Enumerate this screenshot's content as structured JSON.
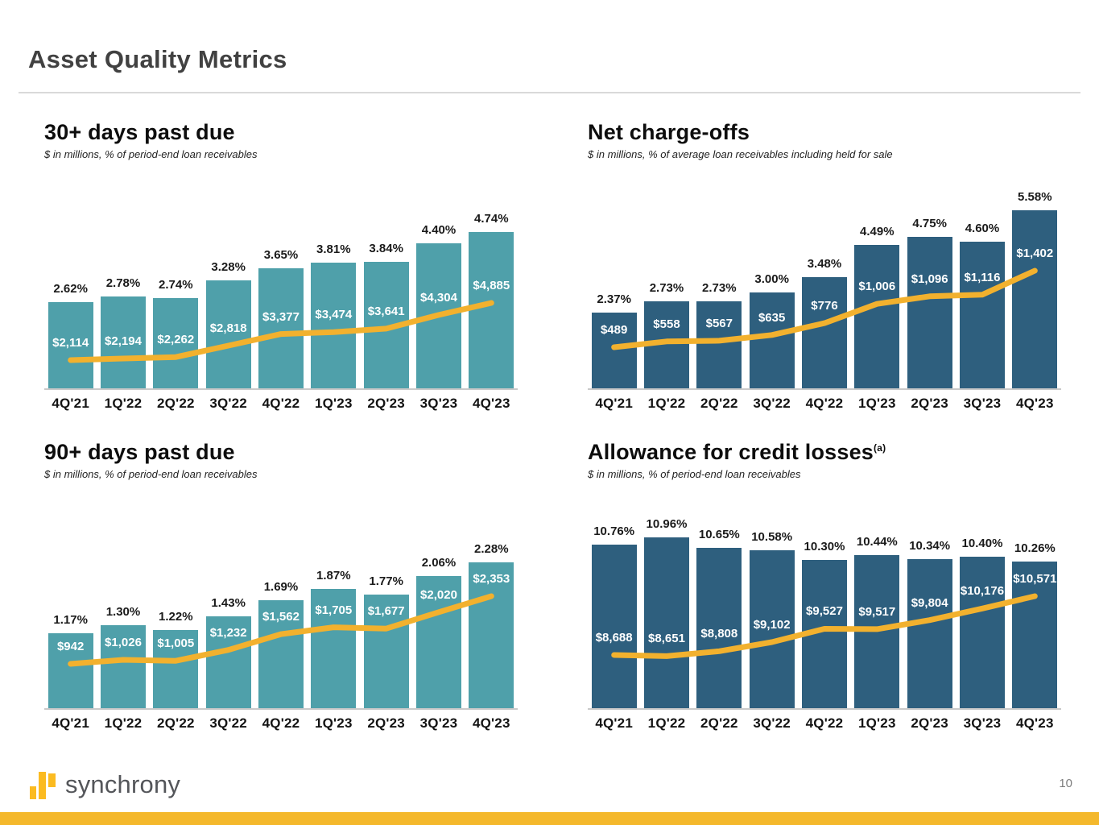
{
  "page": {
    "title": "Asset Quality Metrics",
    "page_number": "10"
  },
  "footer": {
    "logo_text": "synchrony"
  },
  "colors": {
    "teal_bar": "#4FA0AA",
    "dark_blue_bar": "#2E5F7E",
    "line_gold": "#F2B12E",
    "accent_gold": "#F4B82C",
    "logo_gold": "#FBBB21"
  },
  "chart_data": [
    {
      "type": "bar+line",
      "title": "30+ days past due",
      "subtitle": "$ in millions, % of period-end loan receivables",
      "bar_color": "#4FA0AA",
      "line_color": "#F2B12E",
      "categories": [
        "4Q'21",
        "1Q'22",
        "2Q'22",
        "3Q'22",
        "4Q'22",
        "1Q'23",
        "2Q'23",
        "3Q'23",
        "4Q'23"
      ],
      "series": [
        {
          "name": "dollars_in_millions",
          "values": [
            2114,
            2194,
            2262,
            2818,
            3377,
            3474,
            3641,
            4304,
            4885
          ],
          "labels": [
            "$2,114",
            "$2,194",
            "$2,262",
            "$2,818",
            "$3,377",
            "$3,474",
            "$3,641",
            "$4,304",
            "$4,885"
          ]
        },
        {
          "name": "percent_of_period_end_loan_receivables",
          "values": [
            2.62,
            2.78,
            2.74,
            3.28,
            3.65,
            3.81,
            3.84,
            4.4,
            4.74
          ],
          "labels": [
            "2.62%",
            "2.78%",
            "2.74%",
            "3.28%",
            "3.65%",
            "3.81%",
            "3.84%",
            "4.40%",
            "4.74%"
          ]
        }
      ]
    },
    {
      "type": "bar+line",
      "title": "Net charge-offs",
      "subtitle": "$ in millions, % of average loan receivables including held for sale",
      "bar_color": "#2E5F7E",
      "line_color": "#F2B12E",
      "categories": [
        "4Q'21",
        "1Q'22",
        "2Q'22",
        "3Q'22",
        "4Q'22",
        "1Q'23",
        "2Q'23",
        "3Q'23",
        "4Q'23"
      ],
      "series": [
        {
          "name": "dollars_in_millions",
          "values": [
            489,
            558,
            567,
            635,
            776,
            1006,
            1096,
            1116,
            1402
          ],
          "labels": [
            "$489",
            "$558",
            "$567",
            "$635",
            "$776",
            "$1,006",
            "$1,096",
            "$1,116",
            "$1,402"
          ]
        },
        {
          "name": "percent_of_average_loan_receivables",
          "values": [
            2.37,
            2.73,
            2.73,
            3.0,
            3.48,
            4.49,
            4.75,
            4.6,
            5.58
          ],
          "labels": [
            "2.37%",
            "2.73%",
            "2.73%",
            "3.00%",
            "3.48%",
            "4.49%",
            "4.75%",
            "4.60%",
            "5.58%"
          ]
        }
      ]
    },
    {
      "type": "bar+line",
      "title": "90+ days past due",
      "subtitle": "$ in millions, % of period-end loan receivables",
      "bar_color": "#4FA0AA",
      "line_color": "#F2B12E",
      "categories": [
        "4Q'21",
        "1Q'22",
        "2Q'22",
        "3Q'22",
        "4Q'22",
        "1Q'23",
        "2Q'23",
        "3Q'23",
        "4Q'23"
      ],
      "series": [
        {
          "name": "dollars_in_millions",
          "values": [
            942,
            1026,
            1005,
            1232,
            1562,
            1705,
            1677,
            2020,
            2353
          ],
          "labels": [
            "$942",
            "$1,026",
            "$1,005",
            "$1,232",
            "$1,562",
            "$1,705",
            "$1,677",
            "$2,020",
            "$2,353"
          ]
        },
        {
          "name": "percent_of_period_end_loan_receivables",
          "values": [
            1.17,
            1.3,
            1.22,
            1.43,
            1.69,
            1.87,
            1.77,
            2.06,
            2.28
          ],
          "labels": [
            "1.17%",
            "1.30%",
            "1.22%",
            "1.43%",
            "1.69%",
            "1.87%",
            "1.77%",
            "2.06%",
            "2.28%"
          ]
        }
      ]
    },
    {
      "type": "bar+line",
      "title": "Allowance for credit losses",
      "superscript": "(a)",
      "subtitle": "$ in millions, % of period-end loan receivables",
      "bar_color": "#2E5F7E",
      "line_color": "#F2B12E",
      "categories": [
        "4Q'21",
        "1Q'22",
        "2Q'22",
        "3Q'22",
        "4Q'22",
        "1Q'23",
        "2Q'23",
        "3Q'23",
        "4Q'23"
      ],
      "series": [
        {
          "name": "dollars_in_millions",
          "values": [
            8688,
            8651,
            8808,
            9102,
            9527,
            9517,
            9804,
            10176,
            10571
          ],
          "labels": [
            "$8,688",
            "$8,651",
            "$8,808",
            "$9,102",
            "$9,527",
            "$9,517",
            "$9,804",
            "$10,176",
            "$10,571"
          ]
        },
        {
          "name": "percent_of_period_end_loan_receivables",
          "values": [
            10.76,
            10.96,
            10.65,
            10.58,
            10.3,
            10.44,
            10.34,
            10.4,
            10.26
          ],
          "labels": [
            "10.76%",
            "10.96%",
            "10.65%",
            "10.58%",
            "10.30%",
            "10.44%",
            "10.34%",
            "10.40%",
            "10.26%"
          ]
        }
      ]
    }
  ]
}
